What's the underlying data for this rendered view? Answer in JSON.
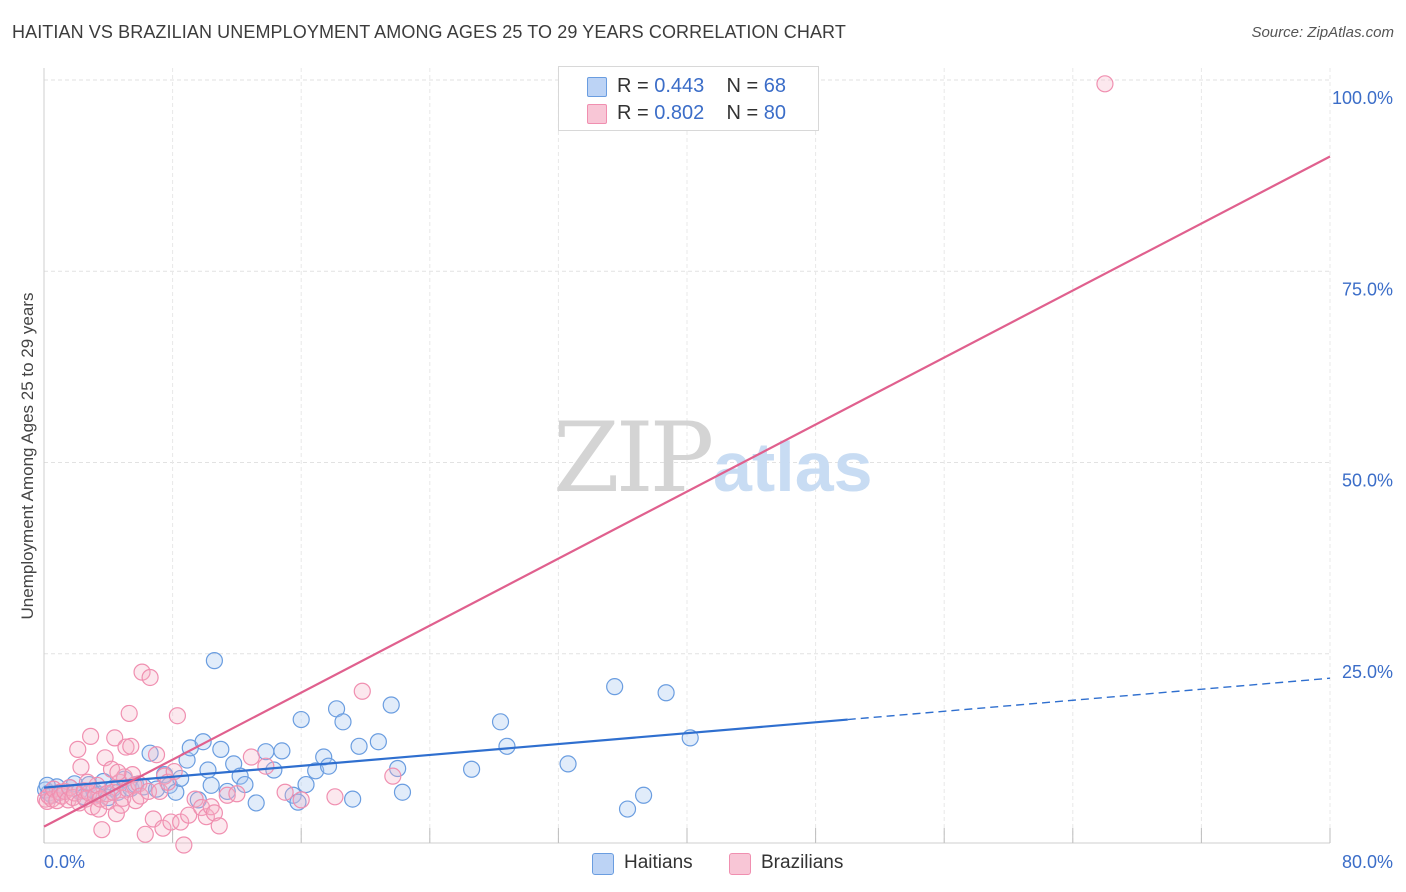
{
  "title": "HAITIAN VS BRAZILIAN UNEMPLOYMENT AMONG AGES 25 TO 29 YEARS CORRELATION CHART",
  "source": "Source: ZipAtlas.com",
  "watermark": {
    "zip": "ZIP",
    "atlas": "atlas"
  },
  "legend": {
    "haitians": {
      "r_label": "R = ",
      "r": "0.443",
      "n_label": "N = ",
      "n": "68"
    },
    "brazilians": {
      "r_label": "R = ",
      "r": "0.802",
      "n_label": "N = ",
      "n": "80"
    }
  },
  "bottom_legend": {
    "haitians": "Haitians",
    "brazilians": "Brazilians"
  },
  "chart_data": {
    "type": "scatter",
    "title": "HAITIAN VS BRAZILIAN UNEMPLOYMENT AMONG AGES 25 TO 29 YEARS CORRELATION CHART",
    "xlabel": "",
    "ylabel": "Unemployment Among Ages 25 to 29 years",
    "xlim": [
      0,
      80
    ],
    "ylim": [
      0,
      105
    ],
    "x_tick_labels": [
      "0.0%",
      "80.0%"
    ],
    "y_tick_labels": [
      "25.0%",
      "50.0%",
      "75.0%",
      "100.0%"
    ],
    "y_ticks": [
      25,
      50,
      75,
      100
    ],
    "grid": true,
    "colors": {
      "haitians": "#6a9de0",
      "haitians_line": "#2f6fcf",
      "brazilians": "#f08fb0",
      "brazilians_line": "#e0608e",
      "tick_text": "#3b6dc8"
    },
    "series": [
      {
        "name": "Haitians",
        "points": [
          [
            0.1,
            7.2
          ],
          [
            0.3,
            6.8
          ],
          [
            0.5,
            6.5
          ],
          [
            0.8,
            7.6
          ],
          [
            1.0,
            6.9
          ],
          [
            1.3,
            7.0
          ],
          [
            1.6,
            7.5
          ],
          [
            1.9,
            8.0
          ],
          [
            2.2,
            7.0
          ],
          [
            2.5,
            6.3
          ],
          [
            2.8,
            7.9
          ],
          [
            3.1,
            7.1
          ],
          [
            3.4,
            6.6
          ],
          [
            3.7,
            8.3
          ],
          [
            4.0,
            6.2
          ],
          [
            4.3,
            7.4
          ],
          [
            4.6,
            6.9
          ],
          [
            5.0,
            8.6
          ],
          [
            5.4,
            7.4
          ],
          [
            5.7,
            7.9
          ],
          [
            6.2,
            7.6
          ],
          [
            6.6,
            12.0
          ],
          [
            7.0,
            7.3
          ],
          [
            7.5,
            9.2
          ],
          [
            7.8,
            7.8
          ],
          [
            8.2,
            6.9
          ],
          [
            8.5,
            8.7
          ],
          [
            8.9,
            11.1
          ],
          [
            9.1,
            12.7
          ],
          [
            9.6,
            5.9
          ],
          [
            9.9,
            13.5
          ],
          [
            10.2,
            9.8
          ],
          [
            10.4,
            7.8
          ],
          [
            10.6,
            24.1
          ],
          [
            11.0,
            12.5
          ],
          [
            11.4,
            7.0
          ],
          [
            11.8,
            10.6
          ],
          [
            12.2,
            9.0
          ],
          [
            12.5,
            7.9
          ],
          [
            13.2,
            5.5
          ],
          [
            13.8,
            12.2
          ],
          [
            14.3,
            9.8
          ],
          [
            14.8,
            12.3
          ],
          [
            15.5,
            6.5
          ],
          [
            15.8,
            5.6
          ],
          [
            16.0,
            16.4
          ],
          [
            16.3,
            7.9
          ],
          [
            16.9,
            9.7
          ],
          [
            17.4,
            11.5
          ],
          [
            17.7,
            10.3
          ],
          [
            18.2,
            17.8
          ],
          [
            18.6,
            16.1
          ],
          [
            19.2,
            6.0
          ],
          [
            19.6,
            12.9
          ],
          [
            20.8,
            13.5
          ],
          [
            21.6,
            18.3
          ],
          [
            22.0,
            10.0
          ],
          [
            22.3,
            6.9
          ],
          [
            26.6,
            9.9
          ],
          [
            28.4,
            16.1
          ],
          [
            28.8,
            12.9
          ],
          [
            32.6,
            10.6
          ],
          [
            35.5,
            20.7
          ],
          [
            36.3,
            4.7
          ],
          [
            37.3,
            6.5
          ],
          [
            38.7,
            19.9
          ],
          [
            40.2,
            14.0
          ],
          [
            0.2,
            7.8
          ]
        ]
      },
      {
        "name": "Brazilians",
        "points": [
          [
            0.1,
            6.0
          ],
          [
            0.2,
            5.7
          ],
          [
            0.3,
            6.4
          ],
          [
            0.5,
            6.0
          ],
          [
            0.6,
            7.3
          ],
          [
            0.8,
            5.8
          ],
          [
            1.0,
            6.9
          ],
          [
            1.1,
            6.4
          ],
          [
            1.3,
            7.0
          ],
          [
            1.5,
            5.9
          ],
          [
            1.6,
            7.5
          ],
          [
            1.8,
            6.2
          ],
          [
            1.9,
            6.8
          ],
          [
            2.1,
            12.5
          ],
          [
            2.2,
            5.5
          ],
          [
            2.3,
            10.2
          ],
          [
            2.5,
            7.1
          ],
          [
            2.6,
            6.0
          ],
          [
            2.8,
            6.8
          ],
          [
            2.9,
            14.2
          ],
          [
            3.0,
            5.0
          ],
          [
            3.2,
            6.4
          ],
          [
            3.3,
            7.8
          ],
          [
            3.4,
            4.7
          ],
          [
            3.5,
            6.0
          ],
          [
            3.6,
            2.0
          ],
          [
            3.8,
            11.4
          ],
          [
            3.9,
            6.7
          ],
          [
            4.0,
            5.7
          ],
          [
            4.2,
            9.9
          ],
          [
            4.3,
            6.9
          ],
          [
            4.4,
            14.0
          ],
          [
            4.5,
            4.1
          ],
          [
            4.7,
            8.2
          ],
          [
            4.8,
            5.2
          ],
          [
            4.9,
            6.1
          ],
          [
            5.0,
            8.9
          ],
          [
            5.1,
            12.8
          ],
          [
            5.2,
            7.3
          ],
          [
            5.3,
            17.2
          ],
          [
            5.4,
            12.9
          ],
          [
            5.5,
            9.2
          ],
          [
            5.6,
            7.8
          ],
          [
            5.7,
            5.8
          ],
          [
            5.9,
            8.0
          ],
          [
            6.0,
            6.4
          ],
          [
            6.1,
            22.6
          ],
          [
            6.3,
            1.4
          ],
          [
            6.5,
            7.0
          ],
          [
            6.6,
            21.9
          ],
          [
            6.8,
            3.4
          ],
          [
            7.0,
            11.8
          ],
          [
            7.2,
            7.0
          ],
          [
            7.4,
            2.2
          ],
          [
            7.5,
            9.0
          ],
          [
            7.7,
            8.2
          ],
          [
            7.9,
            3.0
          ],
          [
            8.1,
            9.6
          ],
          [
            8.3,
            16.9
          ],
          [
            8.5,
            3.0
          ],
          [
            8.7,
            0.0
          ],
          [
            9.0,
            3.9
          ],
          [
            9.4,
            6.0
          ],
          [
            9.8,
            4.9
          ],
          [
            10.1,
            3.7
          ],
          [
            10.4,
            5.0
          ],
          [
            10.6,
            4.2
          ],
          [
            10.9,
            2.5
          ],
          [
            11.4,
            6.5
          ],
          [
            12.0,
            6.7
          ],
          [
            12.9,
            11.5
          ],
          [
            13.8,
            10.3
          ],
          [
            15.0,
            6.9
          ],
          [
            16.0,
            5.9
          ],
          [
            18.1,
            6.3
          ],
          [
            19.8,
            20.1
          ],
          [
            21.7,
            9.0
          ],
          [
            2.7,
            8.2
          ],
          [
            4.6,
            9.5
          ],
          [
            66.0,
            99.5
          ]
        ]
      }
    ],
    "trend_lines": [
      {
        "name": "Haitians",
        "solid_from": [
          0,
          7.5
        ],
        "solid_to": [
          50,
          16.4
        ],
        "dashed_to": [
          80,
          21.8
        ]
      },
      {
        "name": "Brazilians",
        "from": [
          0,
          2.4
        ],
        "to": [
          80,
          90.0
        ]
      }
    ]
  }
}
